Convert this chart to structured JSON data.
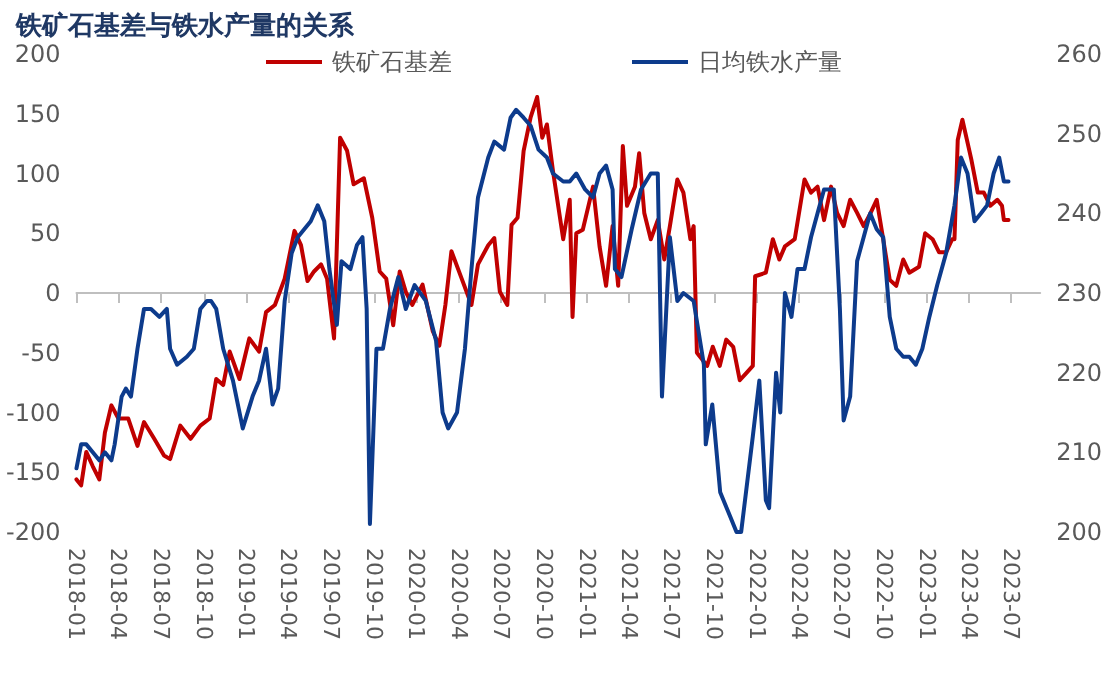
{
  "chart_data": {
    "type": "line",
    "title": "铁矿石基差与铁水产量的关系",
    "legend": "top",
    "marker": "none",
    "line_style": "solid",
    "xlim": [
      "2018-01",
      "2023-09"
    ],
    "xticks": [
      "2018-01",
      "2018-04",
      "2018-07",
      "2018-10",
      "2019-01",
      "2019-04",
      "2019-07",
      "2019-10",
      "2020-01",
      "2020-04",
      "2020-07",
      "2020-10",
      "2021-01",
      "2021-04",
      "2021-07",
      "2021-10",
      "2022-01",
      "2022-04",
      "2022-07",
      "2022-10",
      "2023-01",
      "2023-04",
      "2023-07"
    ],
    "ylim": [
      -200,
      200
    ],
    "yticks": [
      -200,
      -150,
      -100,
      -50,
      0,
      50,
      100,
      150,
      200
    ],
    "y2lim": [
      200,
      260
    ],
    "y2ticks": [
      200,
      210,
      220,
      230,
      240,
      250,
      260
    ],
    "series": [
      {
        "name": "铁矿石基差",
        "color": "#c00000",
        "x": [
          "2018-01-01",
          "2018-01-11",
          "2018-01-22",
          "2018-02-05",
          "2018-02-19",
          "2018-03-03",
          "2018-03-17",
          "2018-04-01",
          "2018-04-22",
          "2018-05-12",
          "2018-05-26",
          "2018-06-17",
          "2018-07-08",
          "2018-07-21",
          "2018-08-12",
          "2018-09-03",
          "2018-09-24",
          "2018-10-14",
          "2018-10-28",
          "2018-11-12",
          "2018-11-26",
          "2018-12-17",
          "2019-01-07",
          "2019-01-28",
          "2019-02-12",
          "2019-03-03",
          "2019-03-24",
          "2019-04-14",
          "2019-04-28",
          "2019-05-12",
          "2019-05-26",
          "2019-06-10",
          "2019-06-23",
          "2019-07-08",
          "2019-07-21",
          "2019-08-05",
          "2019-08-19",
          "2019-09-10",
          "2019-09-28",
          "2019-10-14",
          "2019-10-28",
          "2019-11-12",
          "2019-11-26",
          "2019-12-09",
          "2019-12-23",
          "2020-01-14",
          "2020-02-05",
          "2020-02-19",
          "2020-03-03",
          "2020-03-16",
          "2020-04-07",
          "2020-04-28",
          "2020-05-12",
          "2020-06-03",
          "2020-06-16",
          "2020-06-28",
          "2020-07-14",
          "2020-07-23",
          "2020-08-05",
          "2020-08-18",
          "2020-09-02",
          "2020-09-16",
          "2020-09-27",
          "2020-10-07",
          "2020-10-20",
          "2020-11-11",
          "2020-11-25",
          "2020-12-01",
          "2020-12-09",
          "2020-12-23",
          "2021-01-14",
          "2021-01-28",
          "2021-02-11",
          "2021-02-25",
          "2021-03-09",
          "2021-03-19",
          "2021-03-28",
          "2021-04-14",
          "2021-04-23",
          "2021-05-04",
          "2021-05-18",
          "2021-06-02",
          "2021-06-16",
          "2021-06-28",
          "2021-07-14",
          "2021-07-27",
          "2021-08-11",
          "2021-08-18",
          "2021-08-25",
          "2021-09-16",
          "2021-09-28",
          "2021-10-13",
          "2021-10-27",
          "2021-11-11",
          "2021-11-25",
          "2021-12-09",
          "2021-12-23",
          "2021-12-28",
          "2022-01-20",
          "2022-02-04",
          "2022-02-18",
          "2022-03-02",
          "2022-03-23",
          "2022-04-13",
          "2022-04-27",
          "2022-05-11",
          "2022-05-25",
          "2022-06-09",
          "2022-06-22",
          "2022-07-06",
          "2022-07-20",
          "2022-08-04",
          "2022-08-18",
          "2022-09-02",
          "2022-09-15",
          "2022-09-29",
          "2022-10-13",
          "2022-10-27",
          "2022-11-11",
          "2022-11-24",
          "2022-12-15",
          "2022-12-28",
          "2023-01-13",
          "2023-01-27",
          "2023-02-11",
          "2023-02-24",
          "2023-03-01",
          "2023-03-08",
          "2023-03-18",
          "2023-04-06",
          "2023-04-20",
          "2023-05-03",
          "2023-05-17",
          "2023-06-01",
          "2023-06-11",
          "2023-06-15",
          "2023-06-25"
        ],
        "values": [
          -156,
          -161,
          -133,
          -145,
          -156,
          -117,
          -94,
          -105,
          -105,
          -128,
          -108,
          -122,
          -136,
          -139,
          -111,
          -122,
          -111,
          -105,
          -72,
          -77,
          -49,
          -72,
          -38,
          -49,
          -16,
          -10,
          12,
          52,
          40,
          10,
          18,
          24,
          12,
          -38,
          130,
          119,
          91,
          96,
          63,
          18,
          12,
          -27,
          18,
          1,
          -10,
          7,
          -32,
          -44,
          -10,
          35,
          12,
          -10,
          24,
          40,
          46,
          1,
          -10,
          57,
          63,
          119,
          147,
          164,
          130,
          141,
          102,
          45,
          78,
          -20,
          50,
          53,
          89,
          39,
          6,
          56,
          6,
          123,
          73,
          89,
          117,
          67,
          45,
          61,
          28,
          56,
          95,
          84,
          45,
          56,
          -50,
          -61,
          -45,
          -61,
          -39,
          -45,
          -73,
          -67,
          -61,
          14,
          17,
          45,
          28,
          39,
          45,
          95,
          84,
          89,
          61,
          89,
          67,
          56,
          78,
          67,
          56,
          67,
          78,
          45,
          11,
          6,
          28,
          17,
          22,
          50,
          45,
          34,
          34,
          45,
          45,
          128,
          145,
          112,
          84,
          84,
          73,
          78,
          73,
          61,
          61
        ]
      },
      {
        "name": "日均铁水产量",
        "color": "#0d3b8c",
        "axis": "y2",
        "x": [
          "2018-01-01",
          "2018-01-11",
          "2018-01-22",
          "2018-02-05",
          "2018-02-19",
          "2018-03-03",
          "2018-03-17",
          "2018-03-24",
          "2018-04-08",
          "2018-04-17",
          "2018-04-28",
          "2018-05-12",
          "2018-05-26",
          "2018-06-10",
          "2018-06-28",
          "2018-07-14",
          "2018-07-21",
          "2018-08-05",
          "2018-08-26",
          "2018-09-10",
          "2018-09-24",
          "2018-10-08",
          "2018-10-17",
          "2018-10-28",
          "2018-11-12",
          "2018-12-03",
          "2018-12-24",
          "2019-01-14",
          "2019-01-28",
          "2019-02-12",
          "2019-02-26",
          "2019-03-10",
          "2019-03-24",
          "2019-04-08",
          "2019-04-21",
          "2019-05-05",
          "2019-05-19",
          "2019-06-03",
          "2019-06-17",
          "2019-06-28",
          "2019-07-14",
          "2019-07-24",
          "2019-08-12",
          "2019-08-26",
          "2019-09-07",
          "2019-09-16",
          "2019-09-23",
          "2019-10-07",
          "2019-10-21",
          "2019-11-05",
          "2019-11-23",
          "2019-12-09",
          "2019-12-28",
          "2020-01-21",
          "2020-02-12",
          "2020-02-26",
          "2020-03-09",
          "2020-03-28",
          "2020-04-14",
          "2020-04-28",
          "2020-05-12",
          "2020-06-03",
          "2020-06-16",
          "2020-07-07",
          "2020-07-21",
          "2020-08-02",
          "2020-08-18",
          "2020-09-02",
          "2020-09-19",
          "2020-10-07",
          "2020-10-20",
          "2020-11-11",
          "2020-11-25",
          "2020-12-09",
          "2020-12-28",
          "2021-01-14",
          "2021-01-28",
          "2021-02-11",
          "2021-02-25",
          "2021-03-02",
          "2021-03-16",
          "2021-04-07",
          "2021-04-27",
          "2021-05-18",
          "2021-06-02",
          "2021-06-11",
          "2021-06-28",
          "2021-07-14",
          "2021-07-27",
          "2021-08-18",
          "2021-09-09",
          "2021-09-13",
          "2021-09-27",
          "2021-10-14",
          "2021-11-04",
          "2021-11-18",
          "2021-11-28",
          "2021-12-23",
          "2022-01-06",
          "2022-01-20",
          "2022-01-27",
          "2022-02-11",
          "2022-02-20",
          "2022-03-02",
          "2022-03-16",
          "2022-03-29",
          "2022-04-13",
          "2022-04-27",
          "2022-05-11",
          "2022-05-25",
          "2022-06-15",
          "2022-06-28",
          "2022-07-06",
          "2022-07-20",
          "2022-08-04",
          "2022-08-18",
          "2022-09-01",
          "2022-09-15",
          "2022-09-29",
          "2022-10-13",
          "2022-10-27",
          "2022-11-11",
          "2022-11-24",
          "2022-12-08",
          "2022-12-22",
          "2023-01-06",
          "2023-01-23",
          "2023-02-11",
          "2023-03-01",
          "2023-03-15",
          "2023-03-29",
          "2023-04-13",
          "2023-04-27",
          "2023-05-10",
          "2023-05-24",
          "2023-06-05",
          "2023-06-15",
          "2023-06-25"
        ],
        "values": [
          208,
          211,
          211,
          210,
          209,
          210,
          209,
          211,
          217,
          218,
          217,
          223,
          228,
          228,
          227,
          228,
          223,
          221,
          222,
          223,
          228,
          229,
          229,
          228,
          223,
          219,
          213,
          217,
          219,
          223,
          216,
          218,
          229,
          235,
          237,
          238,
          239,
          241,
          239,
          233,
          226,
          234,
          233,
          236,
          237,
          228,
          201,
          223,
          223,
          228,
          232,
          228,
          231,
          229,
          224,
          215,
          213,
          215,
          223,
          233,
          242,
          247,
          249,
          248,
          252,
          253,
          252,
          251,
          248,
          247,
          245,
          244,
          244,
          245,
          243,
          242,
          245,
          246,
          243,
          233,
          232,
          238,
          243,
          245,
          245,
          217,
          237,
          229,
          230,
          229,
          221,
          211,
          216,
          205,
          202,
          200,
          200,
          212,
          219,
          204,
          203,
          220,
          215,
          230,
          227,
          233,
          233,
          237,
          240,
          243,
          243,
          228,
          214,
          217,
          234,
          237,
          240,
          238,
          237,
          227,
          223,
          222,
          222,
          221,
          223,
          227,
          231,
          235,
          241,
          247,
          245,
          239,
          240,
          241,
          245,
          247,
          244,
          244
        ]
      }
    ]
  }
}
